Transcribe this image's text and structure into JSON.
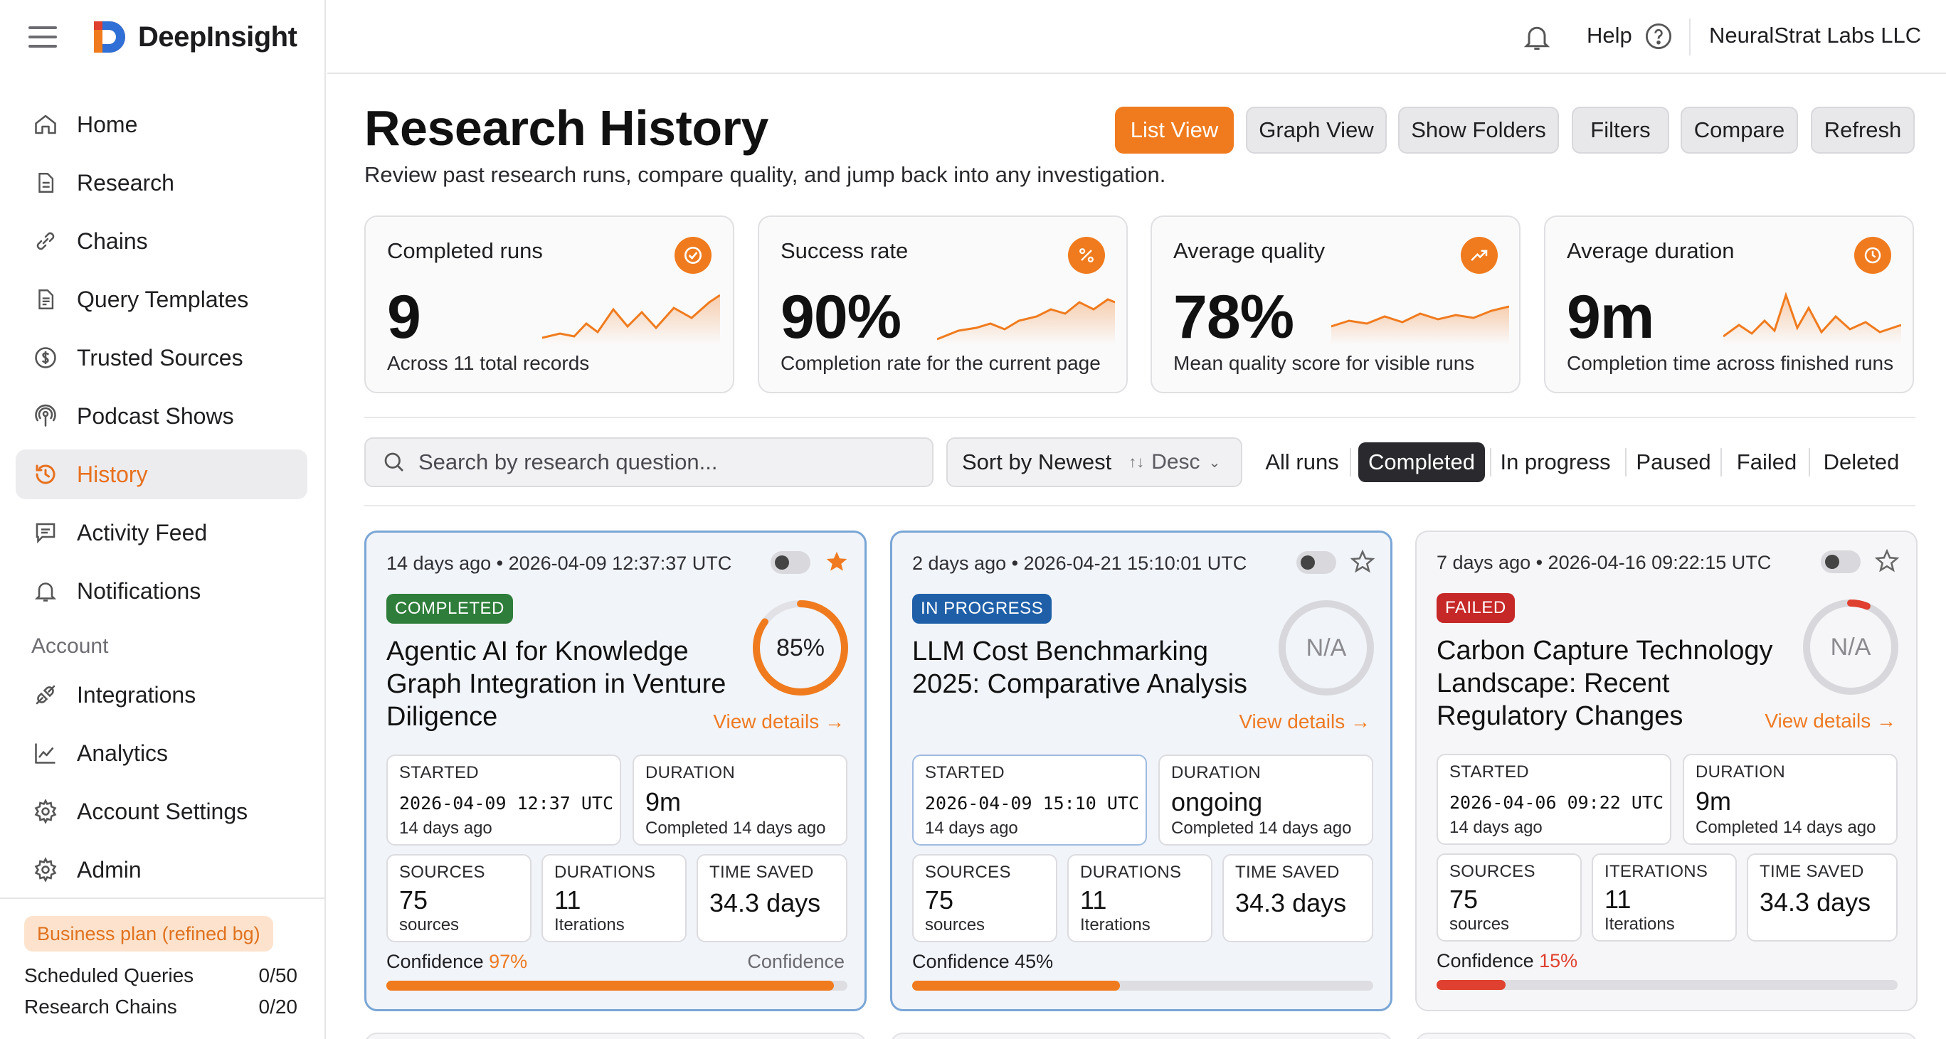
{
  "app": {
    "name": "DeepInsight"
  },
  "sidebar": {
    "items": [
      {
        "label": "Home",
        "icon": "home-icon"
      },
      {
        "label": "Research",
        "icon": "document-icon"
      },
      {
        "label": "Chains",
        "icon": "link-icon"
      },
      {
        "label": "Query Templates",
        "icon": "template-icon"
      },
      {
        "label": "Trusted Sources",
        "icon": "dollar-circle-icon"
      },
      {
        "label": "Podcast Shows",
        "icon": "podcast-icon"
      },
      {
        "label": "History",
        "icon": "history-icon",
        "active": true
      },
      {
        "label": "Activity Feed",
        "icon": "message-icon"
      },
      {
        "label": "Notifications",
        "icon": "bell-icon"
      }
    ],
    "account_heading": "Account",
    "account_items": [
      {
        "label": "Integrations",
        "icon": "plug-icon"
      },
      {
        "label": "Analytics",
        "icon": "chart-icon"
      },
      {
        "label": "Account Settings",
        "icon": "gear-icon"
      },
      {
        "label": "Admin",
        "icon": "admin-gear-icon"
      }
    ],
    "plan": {
      "badge": "Business plan (refined bg)",
      "quotas": [
        {
          "label": "Scheduled Queries",
          "value": "0/50"
        },
        {
          "label": "Research Chains",
          "value": "0/20"
        }
      ]
    }
  },
  "topbar": {
    "help": "Help",
    "org": "NeuralStrat Labs LLC"
  },
  "header": {
    "title": "Research History",
    "subtitle": "Review past research runs, compare quality, and jump back into any investigation.",
    "buttons": [
      "List View",
      "Graph View",
      "Show Folders",
      "Filters",
      "Compare",
      "Refresh"
    ]
  },
  "stats": [
    {
      "label": "Completed runs",
      "value": "9",
      "caption": "Across 11 total records",
      "icon": "check-circle-icon"
    },
    {
      "label": "Success rate",
      "value": "90%",
      "caption": "Completion rate for the current page",
      "icon": "percent-icon"
    },
    {
      "label": "Average quality",
      "value": "78%",
      "caption": "Mean quality score for visible runs",
      "icon": "trend-up-icon"
    },
    {
      "label": "Average duration",
      "value": "9m",
      "caption": "Completion time across finished runs",
      "icon": "clock-icon"
    }
  ],
  "toolbar": {
    "search_placeholder": "Search by research question...",
    "sort_label": "Sort by Newest",
    "sort_dir": "Desc",
    "filters": [
      "All runs",
      "Completed",
      "In progress",
      "Paused",
      "Failed",
      "Deleted"
    ],
    "active_filter": "Completed"
  },
  "cards": [
    {
      "meta": "14 days ago • 2026-04-09 12:37:37 UTC",
      "starred": true,
      "status": "COMPLETED",
      "status_color": "#2e7d3a",
      "title": "Agentic AI for Knowledge Graph Integration in Venture Diligence",
      "score": "85%",
      "score_value": 0.85,
      "details": "View details →",
      "started_label": "STARTED",
      "started_value": "2026-04-09 12:37 UTC",
      "started_sub": "14 days ago",
      "duration_label": "DURATION",
      "duration_value": "9m",
      "duration_sub": "Completed 14 days ago",
      "sources_label": "SOURCES",
      "sources_value": "75",
      "sources_sub": "sources",
      "iter_label": "DURATIONS",
      "iter_value": "11",
      "iter_sub": "Iterations",
      "saved_label": "TIME SAVED",
      "saved_value": "34.3 days",
      "conf_prefix": "Confidence ",
      "conf_pct": "97%",
      "conf_right": "Confidence",
      "conf_value": 0.97,
      "conf_color": "#f07b1e"
    },
    {
      "meta": "2 days ago • 2026-04-21 15:10:01 UTC",
      "starred": false,
      "status": "IN PROGRESS",
      "status_color": "#1f5fa8",
      "title": "LLM Cost Benchmarking 2025: Comparative Analysis",
      "score": "N/A",
      "score_value": 0,
      "details": "View details →",
      "started_label": "STARTED",
      "started_value": "2026-04-09 15:10 UTC",
      "started_sub": "14 days ago",
      "duration_label": "DURATION",
      "duration_value": "ongoing",
      "duration_sub": "Completed 14 days ago",
      "sources_label": "SOURCES",
      "sources_value": "75",
      "sources_sub": "sources",
      "iter_label": "DURATIONS",
      "iter_value": "11",
      "iter_sub": "Iterations",
      "saved_label": "TIME SAVED",
      "saved_value": "34.3 days",
      "conf_prefix": "Confidence 45%",
      "conf_pct": "",
      "conf_right": "",
      "conf_value": 0.45,
      "conf_color": "#f07b1e"
    },
    {
      "meta": "7 days ago • 2026-04-16 09:22:15 UTC",
      "starred": false,
      "status": "FAILED",
      "status_color": "#c62828",
      "title": "Carbon Capture Technology Landscape: Recent Regulatory Changes",
      "score": "N/A",
      "score_value": 0.06,
      "details": "View details →",
      "started_label": "STARTED",
      "started_value": "2026-04-06 09:22 UTC",
      "started_sub": "14 days ago",
      "duration_label": "DURATION",
      "duration_value": "9m",
      "duration_sub": "Completed 14 days ago",
      "sources_label": "SOURCES",
      "sources_value": "75",
      "sources_sub": "sources",
      "iter_label": "ITERATIONS",
      "iter_value": "11",
      "iter_sub": "Iterations",
      "saved_label": "TIME SAVED",
      "saved_value": "34.3 days",
      "conf_prefix": "Confidence ",
      "conf_pct": "15%",
      "conf_right": "",
      "conf_value": 0.15,
      "conf_color": "#e0402f"
    }
  ],
  "colors": {
    "accent": "#f07b1e",
    "active_filter_bg": "#2a2a2e",
    "card_highlight_border": "#7aa6d6"
  }
}
